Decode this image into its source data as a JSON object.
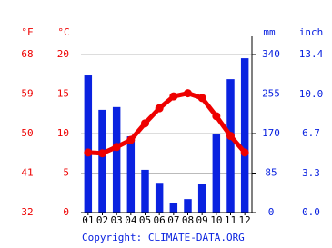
{
  "chart_data": {
    "type": "climate",
    "categories": [
      "01",
      "02",
      "03",
      "04",
      "05",
      "06",
      "07",
      "08",
      "09",
      "10",
      "11",
      "12"
    ],
    "precipitation": {
      "color": "#0a22e0",
      "values": [
        295,
        221,
        227,
        164,
        92,
        64,
        20,
        29,
        61,
        168,
        287,
        332
      ]
    },
    "temperature": {
      "color": "#ee0000",
      "values": [
        7.6,
        7.5,
        8.3,
        9.2,
        11.3,
        13.2,
        14.7,
        15.1,
        14.5,
        12.2,
        9.7,
        7.6
      ]
    },
    "fahrenheit_label": "°F",
    "celsius_label": "°C",
    "mm_label": "mm",
    "inch_label": "inch",
    "ylim": [
      0,
      20
    ],
    "yticks": [
      0,
      5,
      10,
      15,
      20
    ],
    "fahrenheit_lim": [
      32,
      68
    ],
    "fahrenheit_ticks": [
      32,
      41,
      50,
      59,
      68
    ],
    "y2lim": [
      0,
      340
    ],
    "y2ticks": [
      0,
      85,
      170,
      255,
      340
    ],
    "inch_lim": [
      0,
      13.4
    ],
    "inch_ticks": [
      {
        "value": 0,
        "label": "0.0"
      },
      3.3,
      6.7,
      {
        "value": 10,
        "label": "10.0"
      },
      13.4
    ],
    "grid": true,
    "copyright": "Copyright: CLIMATE-DATA.ORG"
  }
}
